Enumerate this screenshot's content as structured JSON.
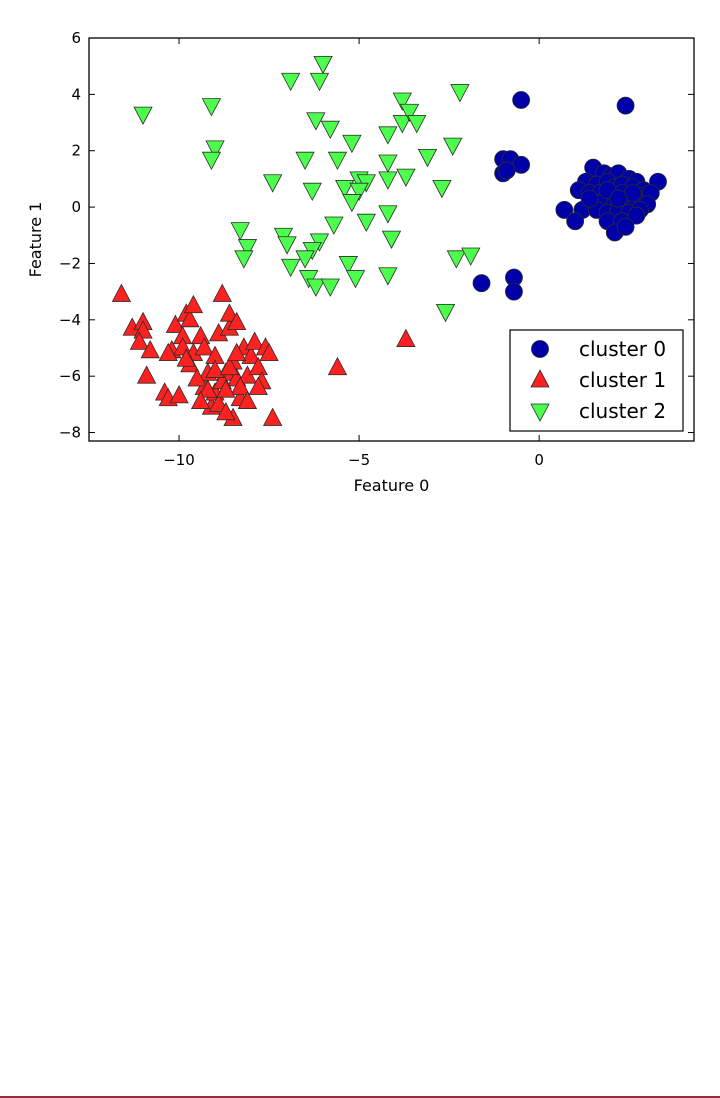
{
  "chart_data": {
    "type": "scatter",
    "title": "",
    "xlabel": "Feature 0",
    "ylabel": "Feature 1",
    "xlim": [
      -12.5,
      4.3
    ],
    "ylim": [
      -8.3,
      6.0
    ],
    "xticks": [
      -10,
      -5,
      0
    ],
    "yticks": [
      -8,
      -6,
      -4,
      -2,
      0,
      2,
      4,
      6
    ],
    "xtick_labels": [
      "−10",
      "−5",
      "0"
    ],
    "ytick_labels": [
      "−8",
      "−6",
      "−4",
      "−2",
      "0",
      "2",
      "4",
      "6"
    ],
    "grid": false,
    "legend": "bottom-right",
    "series": [
      {
        "name": "cluster 0",
        "marker": "circle",
        "color": "#0000a8",
        "points": [
          [
            -0.5,
            3.8
          ],
          [
            2.4,
            3.6
          ],
          [
            -1.0,
            1.7
          ],
          [
            -0.8,
            1.7
          ],
          [
            -0.5,
            1.5
          ],
          [
            -1.0,
            1.2
          ],
          [
            -0.9,
            1.3
          ],
          [
            -1.6,
            -2.7
          ],
          [
            -0.7,
            -2.5
          ],
          [
            -0.7,
            -3.0
          ],
          [
            1.5,
            1.4
          ],
          [
            1.8,
            1.2
          ],
          [
            2.0,
            1.1
          ],
          [
            2.2,
            1.2
          ],
          [
            2.5,
            1.0
          ],
          [
            2.7,
            0.9
          ],
          [
            3.3,
            0.9
          ],
          [
            1.3,
            0.9
          ],
          [
            1.6,
            0.8
          ],
          [
            1.9,
            0.9
          ],
          [
            2.1,
            0.7
          ],
          [
            2.3,
            0.8
          ],
          [
            2.6,
            0.7
          ],
          [
            2.9,
            0.6
          ],
          [
            1.1,
            0.6
          ],
          [
            1.4,
            0.5
          ],
          [
            1.7,
            0.5
          ],
          [
            2.0,
            0.4
          ],
          [
            2.3,
            0.5
          ],
          [
            2.8,
            0.4
          ],
          [
            3.1,
            0.5
          ],
          [
            1.5,
            0.2
          ],
          [
            1.8,
            0.2
          ],
          [
            2.1,
            0.1
          ],
          [
            2.4,
            0.2
          ],
          [
            2.7,
            0.2
          ],
          [
            3.0,
            0.1
          ],
          [
            0.7,
            -0.1
          ],
          [
            1.2,
            -0.1
          ],
          [
            1.6,
            -0.1
          ],
          [
            1.9,
            -0.2
          ],
          [
            2.2,
            -0.1
          ],
          [
            2.5,
            -0.2
          ],
          [
            2.8,
            -0.1
          ],
          [
            1.0,
            -0.5
          ],
          [
            1.9,
            -0.5
          ],
          [
            2.3,
            -0.5
          ],
          [
            2.7,
            -0.3
          ],
          [
            2.1,
            -0.9
          ],
          [
            2.4,
            -0.7
          ],
          [
            1.4,
            0.3
          ],
          [
            2.6,
            0.5
          ],
          [
            1.9,
            0.6
          ],
          [
            2.2,
            0.3
          ]
        ]
      },
      {
        "name": "cluster 1",
        "marker": "triangle-up",
        "color": "#ff2020",
        "points": [
          [
            -11.6,
            -3.1
          ],
          [
            -11.3,
            -4.3
          ],
          [
            -11.0,
            -4.1
          ],
          [
            -11.0,
            -4.4
          ],
          [
            -11.1,
            -4.8
          ],
          [
            -10.8,
            -5.1
          ],
          [
            -10.9,
            -6.0
          ],
          [
            -10.4,
            -6.6
          ],
          [
            -10.3,
            -6.8
          ],
          [
            -10.2,
            -5.1
          ],
          [
            -10.1,
            -4.2
          ],
          [
            -9.9,
            -4.6
          ],
          [
            -9.8,
            -3.8
          ],
          [
            -9.7,
            -4.0
          ],
          [
            -9.6,
            -3.5
          ],
          [
            -9.9,
            -5.0
          ],
          [
            -10.0,
            -6.7
          ],
          [
            -9.6,
            -5.2
          ],
          [
            -9.7,
            -5.6
          ],
          [
            -9.4,
            -4.6
          ],
          [
            -9.3,
            -6.4
          ],
          [
            -9.2,
            -5.9
          ],
          [
            -9.1,
            -7.1
          ],
          [
            -9.0,
            -6.6
          ],
          [
            -8.9,
            -4.5
          ],
          [
            -8.8,
            -3.1
          ],
          [
            -8.7,
            -5.9
          ],
          [
            -8.6,
            -4.3
          ],
          [
            -8.5,
            -5.5
          ],
          [
            -8.4,
            -6.1
          ],
          [
            -8.3,
            -6.8
          ],
          [
            -8.5,
            -7.5
          ],
          [
            -8.6,
            -3.8
          ],
          [
            -8.4,
            -4.1
          ],
          [
            -8.2,
            -5.0
          ],
          [
            -8.1,
            -6.0
          ],
          [
            -8.0,
            -5.3
          ],
          [
            -7.9,
            -4.8
          ],
          [
            -7.8,
            -5.7
          ],
          [
            -7.7,
            -6.2
          ],
          [
            -7.6,
            -5.0
          ],
          [
            -7.5,
            -5.2
          ],
          [
            -7.4,
            -7.5
          ],
          [
            -9.3,
            -5.0
          ],
          [
            -9.0,
            -5.3
          ],
          [
            -8.8,
            -6.2
          ],
          [
            -8.9,
            -7.0
          ],
          [
            -8.7,
            -7.3
          ],
          [
            -8.3,
            -6.4
          ],
          [
            -8.1,
            -6.9
          ],
          [
            -7.8,
            -6.4
          ],
          [
            -9.5,
            -6.1
          ],
          [
            -9.2,
            -6.5
          ],
          [
            -9.0,
            -5.8
          ],
          [
            -8.6,
            -5.7
          ],
          [
            -8.4,
            -5.2
          ],
          [
            -8.7,
            -6.5
          ],
          [
            -9.4,
            -6.9
          ],
          [
            -9.8,
            -5.4
          ],
          [
            -10.3,
            -5.2
          ],
          [
            -5.6,
            -5.7
          ],
          [
            -3.7,
            -4.7
          ]
        ]
      },
      {
        "name": "cluster 2",
        "marker": "triangle-down",
        "color": "#4dff4d",
        "points": [
          [
            -6.0,
            5.1
          ],
          [
            -6.9,
            4.5
          ],
          [
            -6.1,
            4.5
          ],
          [
            -2.2,
            4.1
          ],
          [
            -3.8,
            3.8
          ],
          [
            -11.0,
            3.3
          ],
          [
            -9.1,
            3.6
          ],
          [
            -6.2,
            3.1
          ],
          [
            -5.8,
            2.8
          ],
          [
            -5.2,
            2.3
          ],
          [
            -4.2,
            2.6
          ],
          [
            -3.8,
            3.0
          ],
          [
            -3.6,
            3.4
          ],
          [
            -3.4,
            3.0
          ],
          [
            -3.1,
            1.8
          ],
          [
            -2.4,
            2.2
          ],
          [
            -9.0,
            2.1
          ],
          [
            -9.1,
            1.7
          ],
          [
            -6.5,
            1.7
          ],
          [
            -5.6,
            1.7
          ],
          [
            -4.2,
            1.6
          ],
          [
            -5.0,
            1.0
          ],
          [
            -4.8,
            0.9
          ],
          [
            -4.2,
            1.0
          ],
          [
            -3.7,
            1.1
          ],
          [
            -2.7,
            0.7
          ],
          [
            -7.4,
            0.9
          ],
          [
            -6.3,
            0.6
          ],
          [
            -5.4,
            0.7
          ],
          [
            -5.0,
            0.6
          ],
          [
            -5.2,
            0.2
          ],
          [
            -4.2,
            -0.2
          ],
          [
            -4.8,
            -0.5
          ],
          [
            -5.7,
            -0.6
          ],
          [
            -8.3,
            -0.8
          ],
          [
            -7.1,
            -1.0
          ],
          [
            -6.1,
            -1.2
          ],
          [
            -4.1,
            -1.1
          ],
          [
            -8.1,
            -1.4
          ],
          [
            -7.0,
            -1.3
          ],
          [
            -6.3,
            -1.5
          ],
          [
            -8.2,
            -1.8
          ],
          [
            -6.5,
            -1.8
          ],
          [
            -2.3,
            -1.8
          ],
          [
            -1.9,
            -1.7
          ],
          [
            -6.9,
            -2.1
          ],
          [
            -6.4,
            -2.5
          ],
          [
            -5.3,
            -2.0
          ],
          [
            -5.1,
            -2.5
          ],
          [
            -4.2,
            -2.4
          ],
          [
            -6.2,
            -2.8
          ],
          [
            -5.8,
            -2.8
          ],
          [
            -2.6,
            -3.7
          ]
        ]
      }
    ]
  }
}
